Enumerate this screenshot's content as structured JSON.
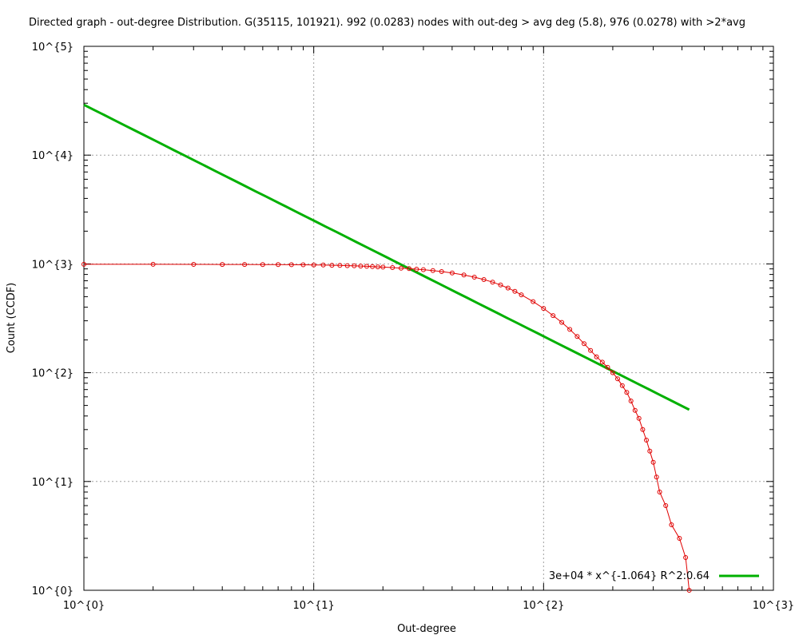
{
  "chart_data": {
    "type": "scatter",
    "title": "Directed graph - out-degree Distribution. G(35115, 101921). 992 (0.0283) nodes with out-deg > avg deg (5.8), 976 (0.0278) with >2*avg",
    "xlabel": "Out-degree",
    "ylabel": "Count (CCDF)",
    "xscale": "log",
    "yscale": "log",
    "xlim": [
      1,
      1000
    ],
    "ylim": [
      1,
      100000
    ],
    "x_ticks": [
      {
        "value": 1,
        "label": "10^{0}"
      },
      {
        "value": 10,
        "label": "10^{1}"
      },
      {
        "value": 100,
        "label": "10^{2}"
      },
      {
        "value": 1000,
        "label": "10^{3}"
      }
    ],
    "y_ticks": [
      {
        "value": 1,
        "label": "10^{0}"
      },
      {
        "value": 10,
        "label": "10^{1}"
      },
      {
        "value": 100,
        "label": "10^{2}"
      },
      {
        "value": 1000,
        "label": "10^{3}"
      },
      {
        "value": 10000,
        "label": "10^{4}"
      },
      {
        "value": 100000,
        "label": "10^{5}"
      }
    ],
    "grid": true,
    "legend_position": "bottom-right",
    "series": [
      {
        "name": "",
        "kind": "line-points",
        "color": "#e00000",
        "points": [
          [
            1,
            992
          ],
          [
            2,
            991
          ],
          [
            3,
            990
          ],
          [
            4,
            989
          ],
          [
            5,
            988
          ],
          [
            6,
            987
          ],
          [
            7,
            986
          ],
          [
            8,
            984
          ],
          [
            9,
            982
          ],
          [
            10,
            979
          ],
          [
            11,
            976
          ],
          [
            12,
            972
          ],
          [
            13,
            968
          ],
          [
            14,
            964
          ],
          [
            15,
            960
          ],
          [
            16,
            955
          ],
          [
            17,
            950
          ],
          [
            18,
            945
          ],
          [
            19,
            940
          ],
          [
            20,
            935
          ],
          [
            22,
            925
          ],
          [
            24,
            915
          ],
          [
            26,
            905
          ],
          [
            28,
            895
          ],
          [
            30,
            885
          ],
          [
            33,
            868
          ],
          [
            36,
            850
          ],
          [
            40,
            825
          ],
          [
            45,
            790
          ],
          [
            50,
            755
          ],
          [
            55,
            718
          ],
          [
            60,
            680
          ],
          [
            65,
            640
          ],
          [
            70,
            600
          ],
          [
            75,
            560
          ],
          [
            80,
            520
          ],
          [
            90,
            450
          ],
          [
            100,
            390
          ],
          [
            110,
            335
          ],
          [
            120,
            290
          ],
          [
            130,
            250
          ],
          [
            140,
            215
          ],
          [
            150,
            185
          ],
          [
            160,
            160
          ],
          [
            170,
            140
          ],
          [
            180,
            125
          ],
          [
            190,
            112
          ],
          [
            200,
            100
          ],
          [
            210,
            88
          ],
          [
            220,
            76
          ],
          [
            230,
            66
          ],
          [
            240,
            55
          ],
          [
            250,
            45
          ],
          [
            260,
            38
          ],
          [
            270,
            30
          ],
          [
            280,
            24
          ],
          [
            290,
            19
          ],
          [
            300,
            15
          ],
          [
            310,
            11
          ],
          [
            320,
            8
          ],
          [
            340,
            6
          ],
          [
            360,
            4
          ],
          [
            390,
            3
          ],
          [
            415,
            2
          ],
          [
            430,
            1
          ]
        ]
      },
      {
        "name": "3e+04 * x^{-1.064}  R^2:0.64",
        "kind": "fit-line",
        "color": "#00b000",
        "coefficient": 29000,
        "exponent": -1.064,
        "x_range": [
          1,
          430
        ]
      }
    ]
  }
}
